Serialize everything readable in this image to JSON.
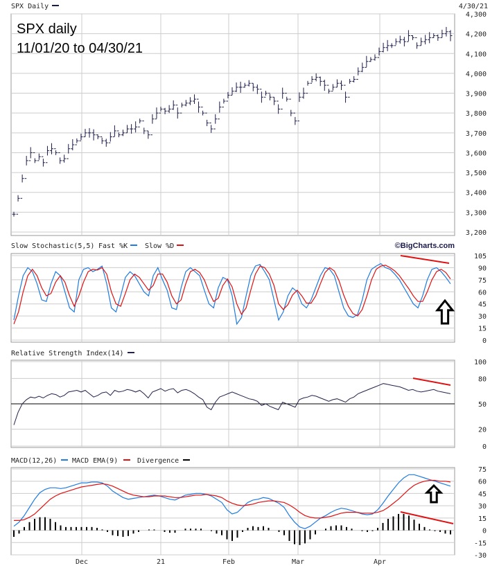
{
  "annotation": {
    "line1": "SPX daily",
    "line2": "11/01/20 to 04/30/21"
  },
  "watermark": "©BigCharts.com",
  "colors": {
    "price": "#1a1a4a",
    "fast": "#1e7be0",
    "slow": "#e01010",
    "rsi": "#22224a",
    "hist": "#000000",
    "grid": "#cccccc",
    "trend": "#e01010"
  },
  "chart_data": [
    {
      "type": "line",
      "panel": "price",
      "title": "SPX Daily",
      "date_label": "4/30/21",
      "x_labels": [
        "Dec",
        "21",
        "Feb",
        "Mar",
        "Apr"
      ],
      "y_ticks": [
        "4,300",
        "4,200",
        "4,100",
        "4,000",
        "3,900",
        "3,800",
        "3,700",
        "3,600",
        "3,500",
        "3,400",
        "3,300",
        "3,200"
      ],
      "ylim": [
        3200,
        4300
      ],
      "series": [
        {
          "values": [
            3290,
            3370,
            3470,
            3560,
            3600,
            3560,
            3580,
            3550,
            3610,
            3620,
            3600,
            3560,
            3570,
            3620,
            3640,
            3660,
            3680,
            3700,
            3700,
            3690,
            3680,
            3660,
            3650,
            3680,
            3710,
            3690,
            3700,
            3720,
            3720,
            3730,
            3760,
            3710,
            3690,
            3770,
            3800,
            3820,
            3810,
            3820,
            3840,
            3800,
            3840,
            3850,
            3860,
            3870,
            3830,
            3800,
            3750,
            3720,
            3770,
            3830,
            3860,
            3890,
            3910,
            3930,
            3930,
            3940,
            3950,
            3930,
            3920,
            3880,
            3900,
            3880,
            3860,
            3820,
            3900,
            3870,
            3800,
            3760,
            3880,
            3900,
            3950,
            3970,
            3980,
            3960,
            3940,
            3910,
            3930,
            3950,
            3940,
            3880,
            3960,
            3970,
            4010,
            4030,
            4060,
            4070,
            4080,
            4110,
            4130,
            4140,
            4140,
            4160,
            4170,
            4160,
            4190,
            4180,
            4140,
            4160,
            4170,
            4180,
            4190,
            4180,
            4200,
            4210,
            4190
          ]
        }
      ]
    },
    {
      "type": "line",
      "panel": "stochastic",
      "title": "Slow Stochastic(5,5)",
      "legend": [
        "Fast %K",
        "Slow %D"
      ],
      "y_ticks": [
        "105",
        "90",
        "75",
        "60",
        "45",
        "30",
        "15",
        "0"
      ],
      "ylim": [
        0,
        105
      ],
      "series": [
        {
          "name": "Fast %K",
          "values": [
            25,
            55,
            80,
            90,
            85,
            70,
            50,
            48,
            70,
            85,
            80,
            60,
            40,
            35,
            75,
            88,
            90,
            85,
            88,
            92,
            70,
            40,
            35,
            55,
            78,
            85,
            80,
            70,
            60,
            55,
            80,
            90,
            75,
            62,
            40,
            38,
            65,
            85,
            90,
            85,
            80,
            62,
            45,
            40,
            65,
            78,
            75,
            55,
            20,
            28,
            55,
            80,
            92,
            94,
            85,
            75,
            50,
            25,
            35,
            55,
            65,
            60,
            45,
            40,
            50,
            65,
            80,
            90,
            88,
            80,
            60,
            40,
            30,
            28,
            32,
            50,
            75,
            88,
            92,
            95,
            90,
            88,
            82,
            75,
            65,
            55,
            45,
            40,
            55,
            75,
            88,
            90,
            85,
            78,
            70
          ]
        },
        {
          "name": "Slow %D",
          "values": [
            20,
            35,
            60,
            80,
            88,
            80,
            65,
            55,
            58,
            72,
            80,
            72,
            55,
            42,
            55,
            72,
            85,
            88,
            87,
            90,
            82,
            60,
            45,
            42,
            58,
            75,
            82,
            78,
            70,
            62,
            68,
            82,
            82,
            72,
            55,
            45,
            50,
            70,
            85,
            88,
            84,
            75,
            60,
            48,
            52,
            68,
            76,
            66,
            45,
            32,
            40,
            62,
            82,
            92,
            90,
            82,
            68,
            45,
            38,
            44,
            56,
            62,
            55,
            46,
            46,
            55,
            70,
            84,
            90,
            86,
            74,
            56,
            42,
            33,
            30,
            38,
            55,
            75,
            88,
            92,
            93,
            90,
            86,
            80,
            72,
            64,
            55,
            48,
            48,
            60,
            75,
            85,
            88,
            84,
            76
          ]
        }
      ]
    },
    {
      "type": "line",
      "panel": "rsi",
      "title": "Relative Strength Index(14)",
      "y_ticks": [
        "100",
        "80",
        "50",
        "20",
        "0"
      ],
      "ylim": [
        0,
        100
      ],
      "series": [
        {
          "name": "RSI",
          "values": [
            25,
            40,
            50,
            55,
            58,
            57,
            59,
            57,
            60,
            62,
            61,
            58,
            60,
            64,
            65,
            66,
            64,
            66,
            62,
            58,
            60,
            63,
            64,
            60,
            66,
            64,
            65,
            67,
            66,
            64,
            66,
            62,
            57,
            64,
            66,
            68,
            65,
            67,
            68,
            63,
            66,
            67,
            65,
            62,
            58,
            55,
            46,
            43,
            52,
            58,
            60,
            62,
            64,
            62,
            60,
            58,
            56,
            55,
            53,
            48,
            50,
            47,
            45,
            43,
            52,
            50,
            48,
            46,
            55,
            57,
            58,
            60,
            59,
            57,
            55,
            53,
            55,
            56,
            54,
            52,
            56,
            58,
            62,
            64,
            66,
            68,
            70,
            72,
            74,
            73,
            72,
            71,
            70,
            68,
            66,
            67,
            65,
            64,
            65,
            66,
            67,
            65,
            64,
            63,
            62
          ]
        }
      ]
    },
    {
      "type": "line",
      "panel": "macd",
      "title": "MACD(12,26)",
      "legend": [
        "MACD EMA(9)",
        "Divergence"
      ],
      "y_ticks": [
        "75",
        "60",
        "45",
        "30",
        "15",
        "0",
        "-15",
        "-30"
      ],
      "ylim": [
        -30,
        75
      ],
      "series": [
        {
          "name": "MACD",
          "values": [
            5,
            10,
            18,
            28,
            38,
            46,
            50,
            52,
            52,
            51,
            52,
            54,
            56,
            58,
            58,
            59,
            59,
            58,
            54,
            48,
            44,
            40,
            38,
            39,
            40,
            41,
            42,
            43,
            42,
            40,
            38,
            37,
            40,
            43,
            44,
            45,
            45,
            44,
            42,
            38,
            34,
            25,
            20,
            22,
            28,
            34,
            37,
            38,
            40,
            39,
            36,
            33,
            28,
            18,
            10,
            4,
            2,
            5,
            10,
            15,
            18,
            22,
            25,
            27,
            26,
            24,
            22,
            20,
            19,
            20,
            25,
            33,
            42,
            50,
            58,
            64,
            68,
            68,
            66,
            64,
            62,
            60,
            58,
            56,
            54
          ]
        },
        {
          "name": "MACD EMA(9)",
          "values": [
            12,
            12,
            13,
            16,
            20,
            26,
            32,
            38,
            42,
            45,
            47,
            49,
            51,
            53,
            54,
            55,
            56,
            57,
            56,
            54,
            51,
            48,
            45,
            43,
            42,
            41,
            41,
            42,
            42,
            42,
            41,
            40,
            40,
            41,
            42,
            43,
            43,
            44,
            43,
            42,
            40,
            36,
            33,
            31,
            30,
            31,
            32,
            34,
            35,
            36,
            36,
            35,
            34,
            31,
            27,
            22,
            18,
            16,
            15,
            15,
            16,
            17,
            19,
            21,
            22,
            22,
            22,
            21,
            21,
            21,
            22,
            24,
            28,
            33,
            38,
            44,
            50,
            55,
            58,
            60,
            61,
            61,
            60,
            60,
            59
          ]
        },
        {
          "name": "Divergence",
          "values": [
            -8,
            -4,
            4,
            10,
            14,
            16,
            16,
            14,
            10,
            6,
            4,
            4,
            4,
            4,
            4,
            4,
            3,
            1,
            -2,
            -6,
            -7,
            -8,
            -7,
            -4,
            -2,
            0,
            1,
            1,
            0,
            -2,
            -3,
            -3,
            0,
            2,
            2,
            2,
            2,
            0,
            -1,
            -4,
            -6,
            -11,
            -13,
            -9,
            -2,
            3,
            5,
            4,
            5,
            3,
            0,
            -2,
            -6,
            -13,
            -17,
            -18,
            -16,
            -11,
            -5,
            0,
            2,
            5,
            6,
            6,
            4,
            2,
            0,
            -1,
            -2,
            -1,
            3,
            9,
            14,
            17,
            20,
            20,
            18,
            13,
            8,
            4,
            1,
            -1,
            -2,
            -4,
            -5
          ]
        }
      ]
    }
  ]
}
